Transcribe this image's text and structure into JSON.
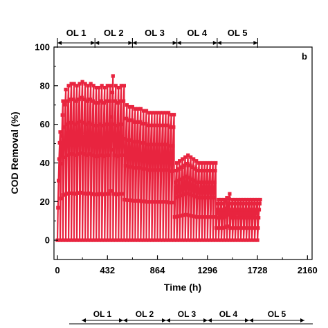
{
  "chart_data": {
    "type": "line",
    "panel_label": "b",
    "xlabel": "Time (h)",
    "ylabel": "COD Removal (%)",
    "xlim": [
      -30,
      2200
    ],
    "ylim": [
      -10,
      100
    ],
    "x_ticks": [
      0,
      432,
      864,
      1296,
      1728,
      2160
    ],
    "y_ticks": [
      0,
      20,
      40,
      60,
      80,
      100
    ],
    "grid": false,
    "legend": "none",
    "color": "#e8243f",
    "marker": "square",
    "loading_phases": [
      {
        "label": "OL 1",
        "start": 0,
        "end": 324
      },
      {
        "label": "OL 2",
        "start": 324,
        "end": 648
      },
      {
        "label": "OL 3",
        "start": 648,
        "end": 1032
      },
      {
        "label": "OL 4",
        "start": 1032,
        "end": 1380
      },
      {
        "label": "OL 5",
        "start": 1380,
        "end": 1730
      }
    ],
    "bottom_phase_labels": [
      "OL 1",
      "OL 2",
      "OL 3",
      "OL 4",
      "OL 5"
    ],
    "series": [
      {
        "cycle_length_h": 24,
        "points_per_cycle": 6,
        "cycle_peaks": [
          [
            0,
            56
          ],
          [
            24,
            72
          ],
          [
            48,
            78
          ],
          [
            72,
            80
          ],
          [
            96,
            81
          ],
          [
            120,
            81
          ],
          [
            144,
            80
          ],
          [
            168,
            81
          ],
          [
            192,
            82
          ],
          [
            216,
            81
          ],
          [
            240,
            80
          ],
          [
            264,
            81
          ],
          [
            288,
            80
          ],
          [
            312,
            79
          ],
          [
            336,
            79
          ],
          [
            360,
            80
          ],
          [
            384,
            79
          ],
          [
            408,
            80
          ],
          [
            432,
            80
          ],
          [
            456,
            85
          ],
          [
            480,
            80
          ],
          [
            504,
            79
          ],
          [
            528,
            80
          ],
          [
            552,
            80
          ],
          [
            576,
            70
          ],
          [
            600,
            69
          ],
          [
            624,
            69
          ],
          [
            648,
            68
          ],
          [
            672,
            68
          ],
          [
            696,
            68
          ],
          [
            720,
            67
          ],
          [
            744,
            67
          ],
          [
            768,
            66
          ],
          [
            792,
            66
          ],
          [
            816,
            66
          ],
          [
            840,
            66
          ],
          [
            864,
            66
          ],
          [
            888,
            66
          ],
          [
            912,
            66
          ],
          [
            936,
            66
          ],
          [
            960,
            65
          ],
          [
            984,
            65
          ],
          [
            1008,
            40
          ],
          [
            1032,
            41
          ],
          [
            1056,
            42
          ],
          [
            1080,
            43
          ],
          [
            1104,
            44
          ],
          [
            1128,
            43
          ],
          [
            1152,
            42
          ],
          [
            1176,
            41
          ],
          [
            1200,
            40
          ],
          [
            1224,
            40
          ],
          [
            1248,
            40
          ],
          [
            1272,
            40
          ],
          [
            1296,
            40
          ],
          [
            1320,
            40
          ],
          [
            1344,
            40
          ],
          [
            1368,
            21
          ],
          [
            1392,
            21
          ],
          [
            1416,
            21
          ],
          [
            1440,
            22
          ],
          [
            1464,
            24
          ],
          [
            1488,
            21
          ],
          [
            1512,
            21
          ],
          [
            1536,
            21
          ],
          [
            1560,
            21
          ],
          [
            1584,
            21
          ],
          [
            1608,
            21
          ],
          [
            1632,
            21
          ],
          [
            1656,
            21
          ],
          [
            1680,
            21
          ],
          [
            1704,
            21
          ],
          [
            1728,
            21
          ]
        ]
      }
    ]
  }
}
